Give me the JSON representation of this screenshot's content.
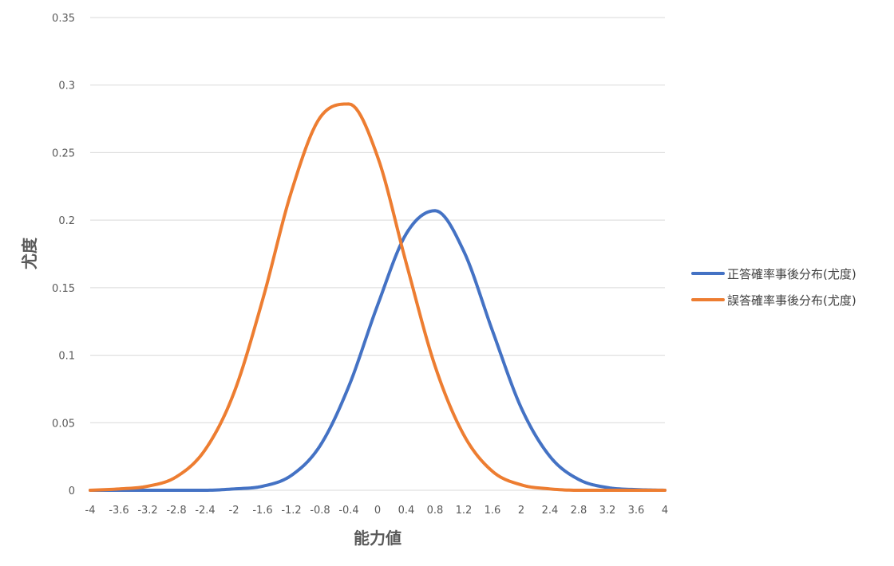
{
  "chart_data": {
    "type": "line",
    "xlabel": "能力値",
    "ylabel": "尤度",
    "xlim": [
      -4,
      4
    ],
    "ylim": [
      0,
      0.35
    ],
    "grid": true,
    "legend_position": "right",
    "x_ticks": [
      "-4",
      "-3.6",
      "-3.2",
      "-2.8",
      "-2.4",
      "-2",
      "-1.6",
      "-1.2",
      "-0.8",
      "-0.4",
      "0",
      "0.4",
      "0.8",
      "1.2",
      "1.6",
      "2",
      "2.4",
      "2.8",
      "3.2",
      "3.6",
      "4"
    ],
    "y_ticks": [
      "0",
      "0.05",
      "0.1",
      "0.15",
      "0.2",
      "0.25",
      "0.3",
      "0.35"
    ],
    "x": [
      -4,
      -3.6,
      -3.2,
      -2.8,
      -2.4,
      -2,
      -1.6,
      -1.2,
      -0.8,
      -0.4,
      0,
      0.4,
      0.8,
      1.2,
      1.6,
      2,
      2.4,
      2.8,
      3.2,
      3.6,
      4
    ],
    "series": [
      {
        "name": "正答確率事後分布(尤度)",
        "color": "#4472C4",
        "values": [
          0.0,
          0.0,
          0.0,
          0.0,
          0.0,
          0.001,
          0.003,
          0.011,
          0.033,
          0.077,
          0.137,
          0.19,
          0.207,
          0.177,
          0.118,
          0.061,
          0.025,
          0.008,
          0.002,
          0.0005,
          0.0
        ]
      },
      {
        "name": "誤答確率事後分布(尤度)",
        "color": "#ED7D31",
        "values": [
          0.0,
          0.001,
          0.003,
          0.01,
          0.03,
          0.072,
          0.141,
          0.221,
          0.276,
          0.286,
          0.247,
          0.168,
          0.092,
          0.041,
          0.014,
          0.004,
          0.001,
          0.0,
          0.0,
          0.0,
          0.0
        ]
      }
    ]
  }
}
